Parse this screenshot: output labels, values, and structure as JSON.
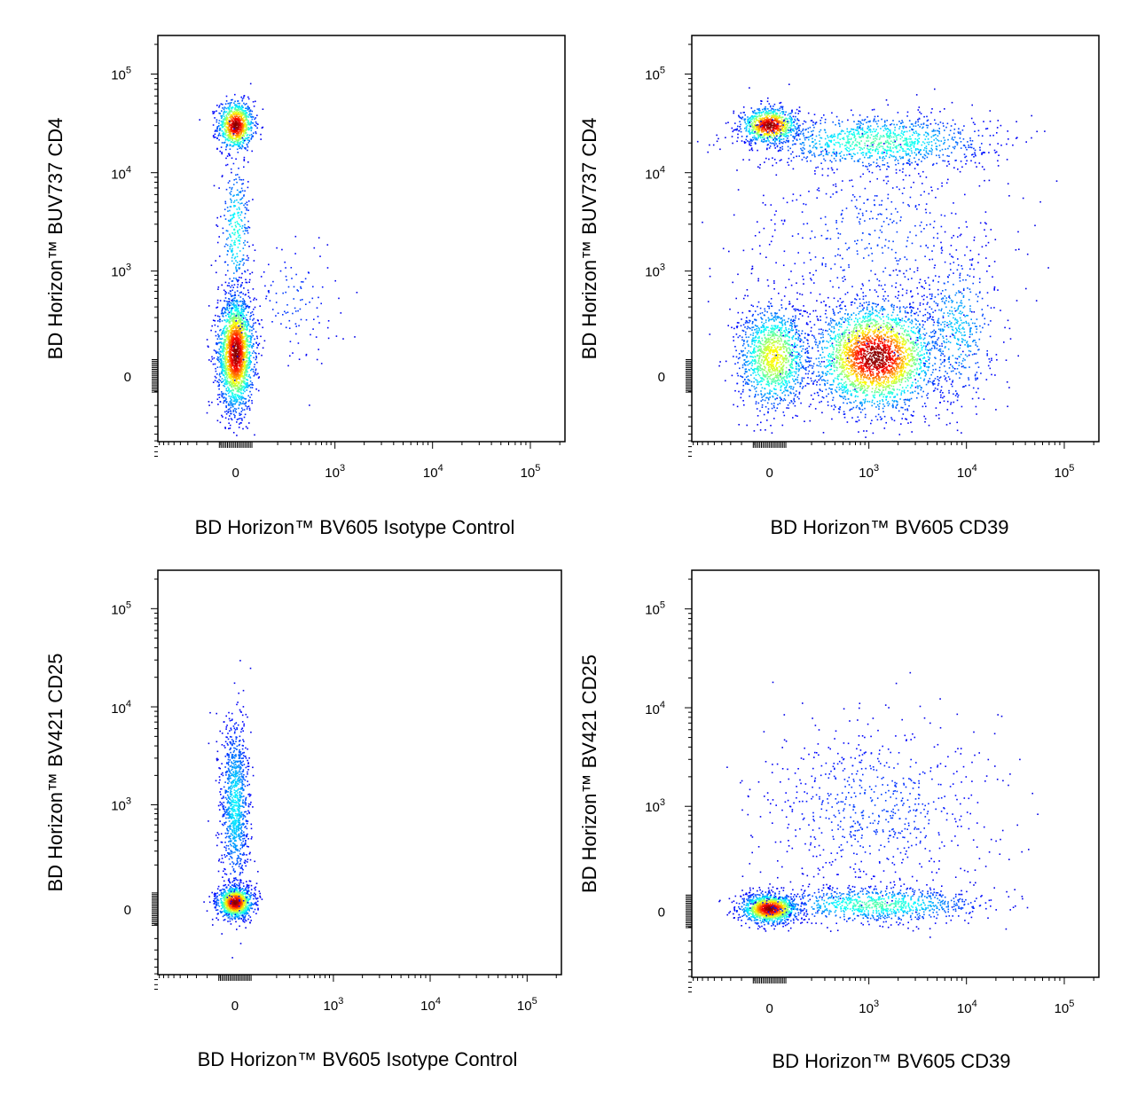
{
  "chart_data": [
    {
      "type": "scatter",
      "subtype": "flow-cytometry-density-plot",
      "xlabel": "BD Horizon™ BV605 Isotype Control",
      "ylabel": "BD Horizon™ BUV737 CD4",
      "x_scale": "biexponential",
      "y_scale": "biexponential",
      "x_ticks": [
        "0",
        "10^3",
        "10^4",
        "10^5"
      ],
      "y_ticks": [
        "0",
        "10^3",
        "10^4",
        "10^5"
      ],
      "xlim": [
        -600,
        250000
      ],
      "ylim": [
        -600,
        250000
      ],
      "populations": [
        {
          "name": "cd4-pos",
          "x": 0,
          "y": 28000,
          "density": "high"
        },
        {
          "name": "cd4-neg",
          "x": 0,
          "y": 150,
          "density": "highest"
        }
      ]
    },
    {
      "type": "scatter",
      "subtype": "flow-cytometry-density-plot",
      "xlabel": "BD Horizon™ BV605 CD39",
      "ylabel": "BD Horizon™ BUV737 CD4",
      "x_scale": "biexponential",
      "y_scale": "biexponential",
      "x_ticks": [
        "0",
        "10^3",
        "10^4",
        "10^5"
      ],
      "y_ticks": [
        "0",
        "10^3",
        "10^4",
        "10^5"
      ],
      "xlim": [
        -600,
        250000
      ],
      "ylim": [
        -600,
        250000
      ],
      "populations": [
        {
          "name": "cd4-pos-cd39-neg",
          "x": 0,
          "y": 28000,
          "density": "high"
        },
        {
          "name": "cd4-pos-cd39-pos",
          "x": 3000,
          "y": 22000,
          "density": "medium"
        },
        {
          "name": "cd4-neg-cd39-neg",
          "x": 0,
          "y": 100,
          "density": "medium"
        },
        {
          "name": "cd4-neg-cd39-pos",
          "x": 1500,
          "y": 100,
          "density": "highest"
        }
      ]
    },
    {
      "type": "scatter",
      "subtype": "flow-cytometry-density-plot",
      "xlabel": "BD Horizon™ BV605 Isotype Control",
      "ylabel": "BD Horizon™ BV421 CD25",
      "x_scale": "biexponential",
      "y_scale": "biexponential",
      "x_ticks": [
        "0",
        "10^3",
        "10^4",
        "10^5"
      ],
      "y_ticks": [
        "0",
        "10^3",
        "10^4",
        "10^5"
      ],
      "xlim": [
        -600,
        250000
      ],
      "ylim": [
        -600,
        250000
      ],
      "populations": [
        {
          "name": "cd25-neg",
          "x": 0,
          "y": 0,
          "density": "highest"
        },
        {
          "name": "cd25-pos",
          "x": 0,
          "y": 1500,
          "density": "low"
        }
      ]
    },
    {
      "type": "scatter",
      "subtype": "flow-cytometry-density-plot",
      "xlabel": "BD Horizon™ BV605 CD39",
      "ylabel": "BD Horizon™ BV421 CD25",
      "x_scale": "biexponential",
      "y_scale": "biexponential",
      "x_ticks": [
        "0",
        "10^3",
        "10^4",
        "10^5"
      ],
      "y_ticks": [
        "0",
        "10^3",
        "10^4",
        "10^5"
      ],
      "xlim": [
        -600,
        250000
      ],
      "ylim": [
        -600,
        250000
      ],
      "populations": [
        {
          "name": "cd25-neg-cd39-neg",
          "x": 0,
          "y": 0,
          "density": "highest"
        },
        {
          "name": "cd25-neg-cd39-pos",
          "x": 3000,
          "y": 0,
          "density": "medium"
        },
        {
          "name": "cd25-pos-cd39-pos",
          "x": 2500,
          "y": 1500,
          "density": "low"
        }
      ]
    }
  ]
}
